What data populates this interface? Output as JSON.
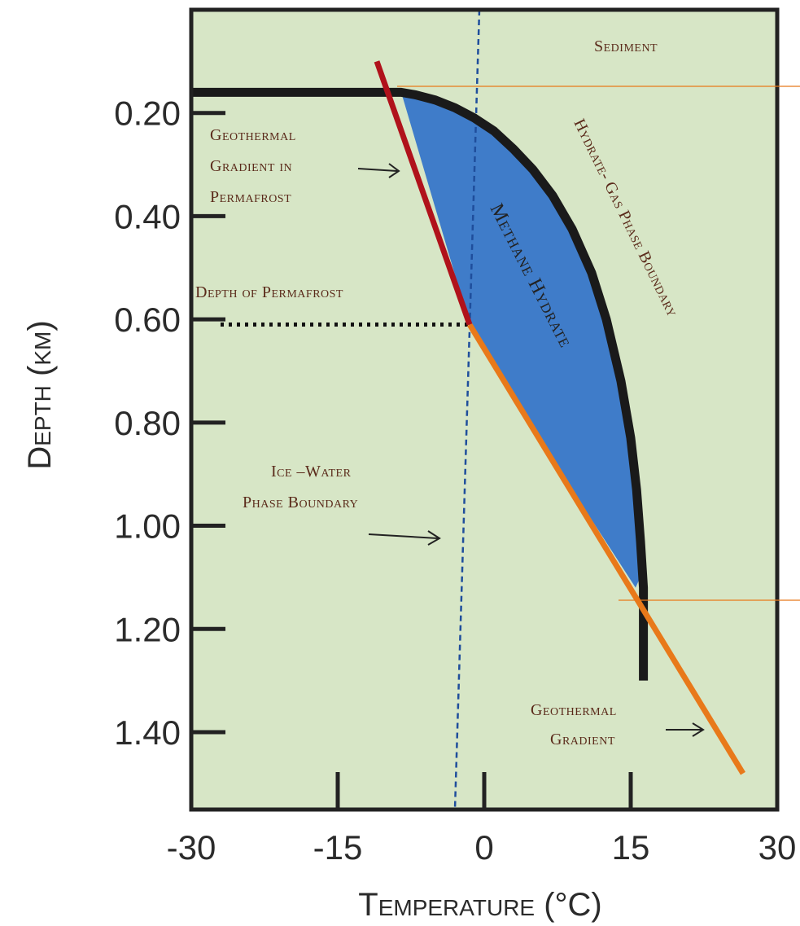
{
  "chart_data": {
    "type": "line",
    "xlabel": "Temperature (°C)",
    "ylabel": "Depth (km)",
    "xlim": [
      -30,
      30
    ],
    "ylim": [
      1.55,
      0.0
    ],
    "x_ticks": [
      "-30",
      "-15",
      "0",
      "15",
      "30"
    ],
    "y_ticks": [
      "0.20",
      "0.40",
      "0.60",
      "0.80",
      "1.00",
      "1.20",
      "1.40"
    ],
    "x_tick_values": [
      -30,
      -15,
      0,
      15,
      30
    ],
    "y_tick_values": [
      0.2,
      0.4,
      0.6,
      0.8,
      1.0,
      1.2,
      1.4
    ],
    "colors": {
      "background": "#d7e6c6",
      "hydrate_fill": "#3f7cc9",
      "phase_boundary": "#1a1a1a",
      "permafrost_gradient": "#b0121b",
      "geothermal_gradient": "#e8791a",
      "ice_water_boundary": "#1f4e9c"
    },
    "series": {
      "hydrate_gas_boundary": {
        "x": [
          -30,
          -28,
          -18,
          -10,
          -8.5,
          -7,
          -5,
          -3,
          -1,
          1,
          3,
          5,
          7,
          9,
          11,
          12.5,
          14,
          15,
          15.6,
          16,
          16.3,
          16.3
        ],
        "y": [
          0.16,
          0.16,
          0.16,
          0.16,
          0.16,
          0.165,
          0.175,
          0.19,
          0.21,
          0.235,
          0.27,
          0.31,
          0.36,
          0.425,
          0.51,
          0.6,
          0.72,
          0.83,
          0.93,
          1.03,
          1.12,
          1.3
        ]
      },
      "permafrost_gradient": {
        "x": [
          -11,
          -1.5
        ],
        "y": [
          0.1,
          0.61
        ]
      },
      "geothermal_gradient": {
        "x": [
          -1.5,
          26.5
        ],
        "y": [
          0.61,
          1.48
        ]
      },
      "ice_water_boundary": {
        "x": [
          -0.5,
          -3
        ],
        "y": [
          0.0,
          1.55
        ]
      },
      "permafrost_depth_line": {
        "x": [
          -27,
          -1.5
        ],
        "y": [
          0.61,
          0.61
        ]
      }
    },
    "hydrate_region": {
      "x": [
        -8.5,
        -7,
        -5,
        -3,
        -1,
        1,
        3,
        5,
        7,
        9,
        11,
        12.5,
        14,
        15,
        15.6,
        16,
        16.2,
        15.5,
        9,
        3,
        -1.5,
        -8.5
      ],
      "y": [
        0.16,
        0.165,
        0.175,
        0.19,
        0.21,
        0.235,
        0.27,
        0.31,
        0.36,
        0.425,
        0.51,
        0.6,
        0.72,
        0.83,
        0.93,
        1.03,
        1.09,
        1.12,
        0.93,
        0.76,
        0.61,
        0.16
      ]
    },
    "annotations": {
      "sediment": "Sediment",
      "geothermal_permafrost": [
        "Geothermal",
        "Gradient in",
        "Permafrost"
      ],
      "depth_permafrost": "Depth of Permafrost",
      "ice_water": [
        "Ice –Water",
        "Phase Boundary"
      ],
      "methane_hydrate": "Methane Hydrate",
      "hydrate_gas": "Hydrate- Gas Phase Boundary",
      "geothermal": [
        "Geothermal",
        "Gradient"
      ]
    }
  }
}
